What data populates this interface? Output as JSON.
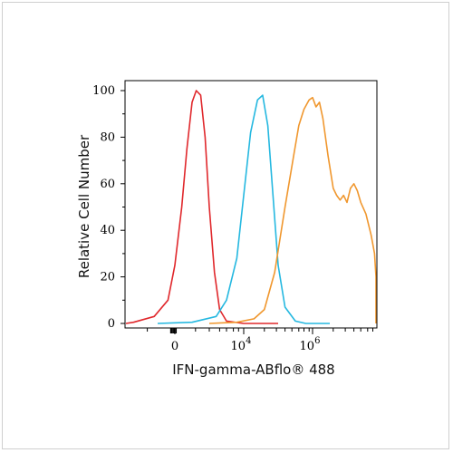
{
  "chart_data": {
    "type": "line",
    "title": "",
    "xlabel": "IFN-gamma-ABflo® 488",
    "ylabel": "Relative Cell Number",
    "ylim": [
      0,
      100
    ],
    "y_ticks": [
      0,
      20,
      40,
      60,
      80,
      100
    ],
    "x_scale": "biexponential",
    "x_ticks": [
      {
        "label": "0",
        "base": "0",
        "exp": ""
      },
      {
        "label": "10^4",
        "base": "10",
        "exp": "4"
      },
      {
        "label": "10^6",
        "base": "10",
        "exp": "6"
      }
    ],
    "grid": false,
    "legend": "none",
    "series": [
      {
        "color": "#e0282c",
        "x": [
          -2.2,
          -1.2,
          -0.6,
          -0.2,
          0.0,
          0.2,
          0.35,
          0.5,
          0.62,
          0.75,
          0.88,
          1.0,
          1.15,
          1.3,
          1.5,
          2.0,
          2.5,
          3.0
        ],
        "y": [
          0,
          0.5,
          3,
          10,
          25,
          50,
          75,
          95,
          100,
          98,
          80,
          50,
          22,
          6,
          1,
          0,
          0,
          0
        ]
      },
      {
        "color": "#25b8e0",
        "x": [
          -0.5,
          0.5,
          1.2,
          1.5,
          1.8,
          2.0,
          2.2,
          2.4,
          2.55,
          2.7,
          2.85,
          3.0,
          3.2,
          3.5,
          3.8,
          4.5
        ],
        "y": [
          0,
          0.5,
          3,
          10,
          28,
          55,
          82,
          96,
          98,
          85,
          55,
          25,
          7,
          1,
          0,
          0
        ]
      },
      {
        "color": "#f0972e",
        "x": [
          1.0,
          1.8,
          2.3,
          2.6,
          2.9,
          3.2,
          3.45,
          3.6,
          3.75,
          3.9,
          4.0,
          4.1,
          4.2,
          4.3,
          4.45,
          4.6,
          4.7,
          4.8,
          4.9,
          5.0,
          5.1,
          5.2,
          5.3,
          5.4,
          5.55,
          5.7,
          5.8,
          6.0,
          6.2,
          6.4,
          6.7,
          7.2,
          9.0
        ],
        "y": [
          0,
          0.5,
          2,
          6,
          22,
          50,
          72,
          85,
          92,
          96,
          97,
          93,
          95,
          88,
          72,
          58,
          55,
          53,
          55,
          52,
          58,
          60,
          57,
          52,
          47,
          38,
          30,
          20,
          10,
          4,
          1,
          0,
          0
        ]
      }
    ]
  }
}
